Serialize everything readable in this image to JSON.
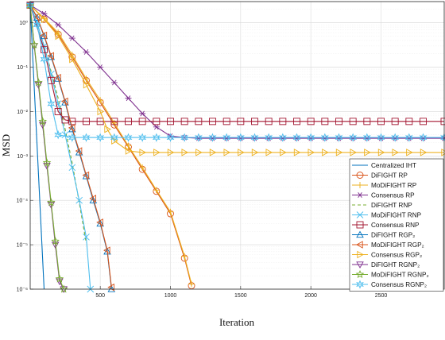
{
  "chart_data": {
    "type": "line",
    "title": "",
    "xlabel": "Iteration",
    "ylabel": "MSD",
    "xlim": [
      1,
      2950
    ],
    "ylim": [
      1e-06,
      3
    ],
    "yscale": "log",
    "grid": "on",
    "x_ticks": [
      500,
      1000,
      1500,
      2000,
      2500
    ],
    "x_tick_labels": [
      "500",
      "1000",
      "1500",
      "2000",
      "2500"
    ],
    "y_ticks": [
      1e-06,
      1e-05,
      0.0001,
      0.001,
      0.01,
      0.1,
      1
    ],
    "y_tick_labels": [
      "10⁻⁶",
      "10⁻⁵",
      "10⁻⁴",
      "10⁻³",
      "10⁻²",
      "10⁻¹",
      "10⁰"
    ],
    "legend_position": "bottom-right",
    "series": [
      {
        "name": "Centralized IHT",
        "color": "#0072BD",
        "marker": "none",
        "dash": "solid",
        "x": [
          1,
          100
        ],
        "y": [
          2.5,
          1e-06
        ]
      },
      {
        "name": "DiFIGHT RP",
        "color": "#D95319",
        "marker": "circle",
        "dash": "solid",
        "x": [
          1,
          100,
          200,
          300,
          400,
          500,
          600,
          700,
          800,
          900,
          1000,
          1100,
          1150
        ],
        "y": [
          2.5,
          1.2,
          0.55,
          0.17,
          0.05,
          0.016,
          0.005,
          0.0016,
          0.0005,
          0.00016,
          5e-05,
          5e-06,
          1.2e-06
        ]
      },
      {
        "name": "MoDiFIGHT RP",
        "color": "#EDB120",
        "marker": "plus",
        "dash": "solid",
        "x": [
          1,
          100,
          200,
          300,
          400,
          500,
          600,
          700,
          800,
          900,
          1000,
          1100,
          1150
        ],
        "y": [
          2.5,
          1.25,
          0.6,
          0.19,
          0.055,
          0.018,
          0.0055,
          0.0017,
          0.00055,
          0.00017,
          5.5e-05,
          5.5e-06,
          1.3e-06
        ]
      },
      {
        "name": "Consensus RP",
        "color": "#7E2F8E",
        "marker": "asterisk",
        "dash": "solid",
        "x": [
          1,
          100,
          200,
          300,
          400,
          500,
          600,
          700,
          800,
          900,
          1000,
          1100,
          1200,
          1300,
          1400,
          1500,
          1600,
          1700,
          1800,
          1900,
          2000,
          2100,
          2200,
          2300,
          2400,
          2500,
          2600,
          2700,
          2800,
          2950
        ],
        "y": [
          2.5,
          1.6,
          0.9,
          0.45,
          0.22,
          0.1,
          0.045,
          0.02,
          0.009,
          0.0045,
          0.0028,
          0.0026,
          0.0025,
          0.0025,
          0.0025,
          0.0025,
          0.0025,
          0.0025,
          0.0025,
          0.0025,
          0.0025,
          0.0025,
          0.0025,
          0.0025,
          0.0025,
          0.0025,
          0.0025,
          0.0025,
          0.0025,
          0.0025
        ]
      },
      {
        "name": "DiFIGHT RNP",
        "color": "#77AC30",
        "marker": "none",
        "dash": "dashed",
        "x": [
          1,
          50,
          100,
          150,
          200,
          250,
          300,
          350,
          400
        ],
        "y": [
          2.5,
          1.0,
          0.3,
          0.08,
          0.02,
          0.004,
          0.0007,
          9e-05,
          1.1e-05
        ]
      },
      {
        "name": "MoDiFIGHT RNP",
        "color": "#4DBEEE",
        "marker": "cross",
        "dash": "solid",
        "x": [
          1,
          50,
          100,
          150,
          200,
          250,
          300,
          350,
          400,
          430
        ],
        "y": [
          2.5,
          1.0,
          0.3,
          0.07,
          0.015,
          0.003,
          0.00055,
          0.0001,
          1.5e-05,
          1e-06
        ]
      },
      {
        "name": "Consensus RNP",
        "color": "#A2142F",
        "marker": "square",
        "dash": "solid",
        "x": [
          1,
          100,
          150,
          200,
          250,
          300,
          400,
          500,
          600,
          700,
          800,
          900,
          1000,
          1100,
          1200,
          1300,
          1400,
          1500,
          1600,
          1700,
          1800,
          1900,
          2000,
          2100,
          2200,
          2300,
          2400,
          2500,
          2600,
          2700,
          2800,
          2950
        ],
        "y": [
          2.5,
          0.25,
          0.05,
          0.01,
          0.0065,
          0.006,
          0.006,
          0.006,
          0.006,
          0.006,
          0.006,
          0.006,
          0.006,
          0.006,
          0.006,
          0.006,
          0.006,
          0.006,
          0.006,
          0.006,
          0.006,
          0.006,
          0.006,
          0.006,
          0.006,
          0.006,
          0.006,
          0.006,
          0.006,
          0.006,
          0.006,
          0.006
        ]
      },
      {
        "name": "DiFIGHT RGP₂",
        "color": "#0072BD",
        "marker": "triangle-up",
        "dash": "solid",
        "x": [
          1,
          50,
          100,
          150,
          200,
          250,
          300,
          350,
          400,
          450,
          500,
          550,
          580
        ],
        "y": [
          2.5,
          1.3,
          0.5,
          0.17,
          0.055,
          0.016,
          0.004,
          0.0012,
          0.00035,
          0.0001,
          3e-05,
          7e-06,
          1e-06
        ]
      },
      {
        "name": "MoDiFIGHT RGP₂",
        "color": "#D95319",
        "marker": "triangle-left",
        "dash": "solid",
        "x": [
          1,
          50,
          100,
          150,
          200,
          250,
          300,
          350,
          400,
          450,
          500,
          550,
          580
        ],
        "y": [
          2.5,
          1.35,
          0.52,
          0.18,
          0.058,
          0.017,
          0.0043,
          0.0013,
          0.00037,
          0.00011,
          3.2e-05,
          7.5e-06,
          1.1e-06
        ]
      },
      {
        "name": "Consensus RGP₂",
        "color": "#EDB120",
        "marker": "triangle-right",
        "dash": "solid",
        "x": [
          1,
          100,
          200,
          300,
          400,
          500,
          550,
          600,
          700,
          800,
          900,
          1000,
          1100,
          1200,
          1300,
          1400,
          1500,
          1600,
          1700,
          1800,
          1900,
          2000,
          2100,
          2200,
          2300,
          2400,
          2500,
          2600,
          2700,
          2800,
          2950
        ],
        "y": [
          2.5,
          1.2,
          0.5,
          0.15,
          0.04,
          0.01,
          0.004,
          0.0022,
          0.0013,
          0.0012,
          0.0012,
          0.0012,
          0.0012,
          0.0012,
          0.0012,
          0.0012,
          0.0012,
          0.0012,
          0.0012,
          0.0012,
          0.0012,
          0.0012,
          0.0012,
          0.0012,
          0.0012,
          0.0012,
          0.0012,
          0.0012,
          0.0012,
          0.0012,
          0.0012
        ]
      },
      {
        "name": "DiFIGHT RGNP₂",
        "color": "#7E2F8E",
        "marker": "triangle-down",
        "dash": "solid",
        "x": [
          1,
          30,
          60,
          90,
          120,
          150,
          180,
          210,
          240
        ],
        "y": [
          2.5,
          0.3,
          0.04,
          0.005,
          0.0006,
          8e-05,
          1e-05,
          1.5e-06,
          1e-06
        ]
      },
      {
        "name": "MoDiFIGHT RGNP₂",
        "color": "#77AC30",
        "marker": "star",
        "dash": "solid",
        "x": [
          1,
          30,
          60,
          90,
          120,
          150,
          180,
          210,
          240
        ],
        "y": [
          2.5,
          0.32,
          0.045,
          0.006,
          0.0007,
          9e-05,
          1.2e-05,
          1.7e-06,
          1e-06
        ]
      },
      {
        "name": "Consensus RGNP₂",
        "color": "#4DBEEE",
        "marker": "hexagram",
        "dash": "solid",
        "x": [
          1,
          50,
          100,
          150,
          200,
          300,
          400,
          500,
          600,
          700,
          800,
          900,
          1000,
          1100,
          1200,
          1300,
          1400,
          1500,
          1600,
          1700,
          1800,
          1900,
          2000,
          2100,
          2200,
          2300,
          2400,
          2500,
          2600,
          2700,
          2800,
          2950
        ],
        "y": [
          2.5,
          0.9,
          0.15,
          0.015,
          0.003,
          0.0026,
          0.0026,
          0.0026,
          0.0026,
          0.0026,
          0.0026,
          0.0026,
          0.0026,
          0.0026,
          0.0026,
          0.0026,
          0.0026,
          0.0026,
          0.0026,
          0.0026,
          0.0026,
          0.0026,
          0.0026,
          0.0026,
          0.0026,
          0.0026,
          0.0026,
          0.0026,
          0.0026,
          0.0026,
          0.0026,
          0.0026
        ]
      }
    ]
  }
}
